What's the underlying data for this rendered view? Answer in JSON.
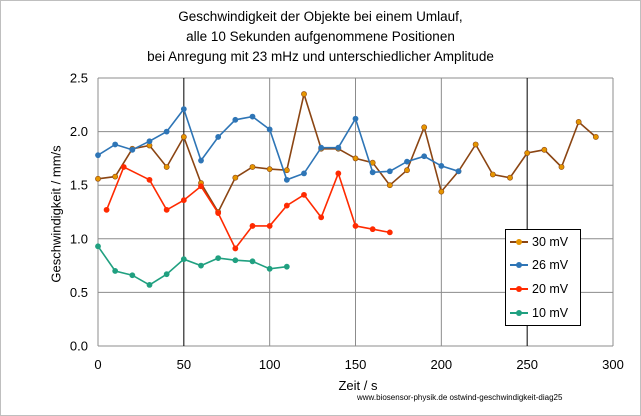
{
  "chart_data": {
    "type": "line",
    "title_lines": [
      "Geschwindigkeit der Objekte bei einem Umlauf,",
      "alle 10 Sekunden aufgenommene Positionen",
      "bei Anregung mit 23 mHz  und unterschiedlicher Amplitude"
    ],
    "xlabel": "Zeit / s",
    "ylabel": "Geschwindigkeit / mm/s",
    "xlim": [
      0,
      300
    ],
    "ylim": [
      0,
      2.5
    ],
    "x_ticks": [
      "0",
      "50",
      "100",
      "150",
      "200",
      "250",
      "300"
    ],
    "y_ticks": [
      "0.0",
      "0.5",
      "1.0",
      "1.5",
      "2.0",
      "2.5"
    ],
    "grid": true,
    "legend_position": "lower-right",
    "series": [
      {
        "name": "30 mV",
        "color": "#8b4513",
        "marker_color": "#e69500",
        "points": [
          [
            0,
            1.56
          ],
          [
            10,
            1.58
          ],
          [
            20,
            1.84
          ],
          [
            30,
            1.87
          ],
          [
            40,
            1.67
          ],
          [
            50,
            1.95
          ],
          [
            60,
            1.52
          ],
          [
            70,
            1.25
          ],
          [
            80,
            1.57
          ],
          [
            90,
            1.67
          ],
          [
            100,
            1.65
          ],
          [
            110,
            1.64
          ],
          [
            120,
            2.35
          ],
          [
            130,
            1.84
          ],
          [
            140,
            1.84
          ],
          [
            150,
            1.75
          ],
          [
            160,
            1.71
          ],
          [
            170,
            1.5
          ],
          [
            180,
            1.64
          ],
          [
            190,
            2.04
          ],
          [
            200,
            1.44
          ],
          [
            210,
            1.63
          ],
          [
            220,
            1.88
          ],
          [
            230,
            1.6
          ],
          [
            240,
            1.57
          ],
          [
            250,
            1.8
          ],
          [
            260,
            1.83
          ],
          [
            270,
            1.67
          ],
          [
            280,
            2.09
          ],
          [
            290,
            1.95
          ]
        ]
      },
      {
        "name": "26 mV",
        "color": "#2e75b6",
        "marker_color": "#2e75b6",
        "points": [
          [
            0,
            1.78
          ],
          [
            10,
            1.88
          ],
          [
            20,
            1.83
          ],
          [
            30,
            1.91
          ],
          [
            40,
            2.0
          ],
          [
            50,
            2.21
          ],
          [
            60,
            1.73
          ],
          [
            70,
            1.95
          ],
          [
            80,
            2.11
          ],
          [
            90,
            2.14
          ],
          [
            100,
            2.02
          ],
          [
            110,
            1.55
          ],
          [
            120,
            1.61
          ],
          [
            130,
            1.85
          ],
          [
            140,
            1.85
          ],
          [
            150,
            2.12
          ],
          [
            160,
            1.62
          ],
          [
            170,
            1.63
          ],
          [
            180,
            1.72
          ],
          [
            190,
            1.77
          ],
          [
            200,
            1.68
          ],
          [
            210,
            1.63
          ]
        ]
      },
      {
        "name": "20 mV",
        "color": "#ff2a00",
        "marker_color": "#ff2a00",
        "points": [
          [
            5,
            1.27
          ],
          [
            15,
            1.67
          ],
          [
            30,
            1.55
          ],
          [
            40,
            1.27
          ],
          [
            50,
            1.36
          ],
          [
            60,
            1.49
          ],
          [
            70,
            1.24
          ],
          [
            80,
            0.91
          ],
          [
            90,
            1.12
          ],
          [
            100,
            1.12
          ],
          [
            110,
            1.31
          ],
          [
            120,
            1.41
          ],
          [
            130,
            1.2
          ],
          [
            140,
            1.61
          ],
          [
            150,
            1.12
          ],
          [
            160,
            1.09
          ],
          [
            170,
            1.06
          ]
        ]
      },
      {
        "name": "10 mV",
        "color": "#20a080",
        "marker_color": "#20a080",
        "points": [
          [
            0,
            0.93
          ],
          [
            10,
            0.7
          ],
          [
            20,
            0.66
          ],
          [
            30,
            0.57
          ],
          [
            40,
            0.67
          ],
          [
            50,
            0.81
          ],
          [
            60,
            0.75
          ],
          [
            70,
            0.82
          ],
          [
            80,
            0.8
          ],
          [
            90,
            0.79
          ],
          [
            100,
            0.72
          ],
          [
            110,
            0.74
          ]
        ]
      }
    ]
  },
  "watermark": "www.biosensor-physik.de  ostwind-geschwindigkeit-diag25"
}
